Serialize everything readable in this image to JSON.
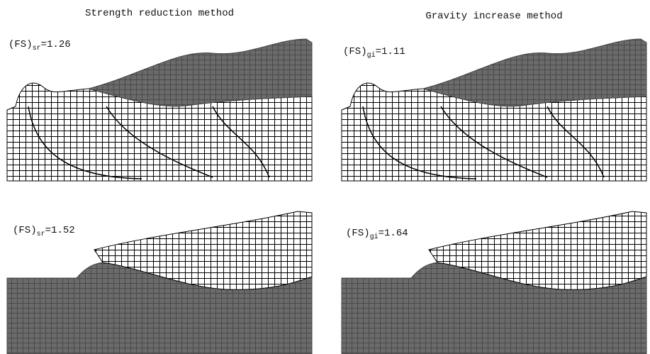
{
  "titles": [
    "Strength reduction method",
    "Gravity increase method"
  ],
  "panels": [
    {
      "prefix": "(FS)",
      "subscript": "sr",
      "value": "=1.26"
    },
    {
      "prefix": "(FS)",
      "subscript": "gi",
      "value": "=1.11"
    },
    {
      "prefix": "(FS)",
      "subscript": "sr",
      "value": "=1.52"
    },
    {
      "prefix": "(FS)",
      "subscript": "gi",
      "value": "=1.64"
    }
  ]
}
